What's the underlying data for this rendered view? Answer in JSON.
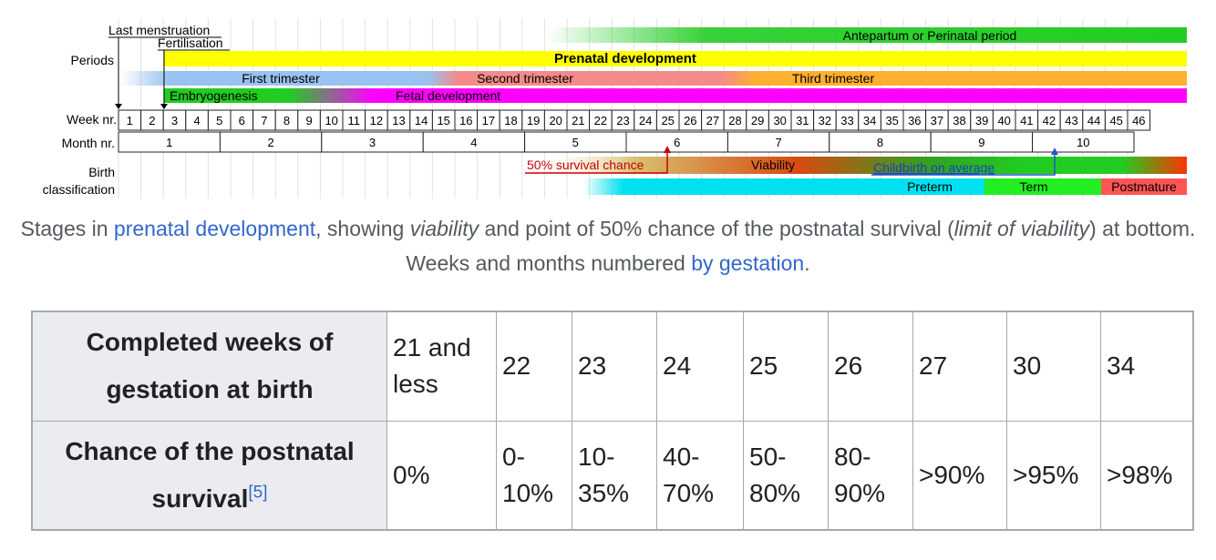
{
  "diagram": {
    "labels": {
      "last_menstruation": "Last menstruation",
      "fertilisation": "Fertilisation",
      "periods": "Periods",
      "week_nr": "Week nr.",
      "month_nr": "Month nr.",
      "birth": "Birth",
      "classification": "classification"
    },
    "bars": {
      "antepartum": "Antepartum or Perinatal period",
      "prenatal": "Prenatal development",
      "first_trimester": "First trimester",
      "second_trimester": "Second trimester",
      "third_trimester": "Third trimester",
      "embryogenesis": "Embryogenesis",
      "fetal": "Fetal development",
      "survival50": "50% survival chance",
      "viability": "Viability",
      "childbirth": "Childbirth on average",
      "preterm": "Preterm",
      "term": "Term",
      "postmature": "Postmature"
    },
    "weeks": [
      "1",
      "2",
      "3",
      "4",
      "5",
      "6",
      "7",
      "8",
      "9",
      "10",
      "11",
      "12",
      "13",
      "14",
      "15",
      "16",
      "17",
      "18",
      "19",
      "20",
      "21",
      "22",
      "23",
      "24",
      "25",
      "26",
      "27",
      "28",
      "29",
      "30",
      "31",
      "32",
      "33",
      "34",
      "35",
      "36",
      "37",
      "38",
      "39",
      "40",
      "41",
      "42",
      "43",
      "44",
      "45",
      "46"
    ],
    "months": [
      "1",
      "2",
      "3",
      "4",
      "5",
      "6",
      "7",
      "8",
      "9",
      "10"
    ],
    "colors": {
      "antepartum": "#22cc22",
      "prenatal": "#ffff00",
      "first_trimester": "#99c2f0",
      "second_trimester": "#f58a8a",
      "third_trimester": "#ffb030",
      "embryogenesis": "#22cc22",
      "fetal": "#ff00ff",
      "preterm": "#00e0f0",
      "term": "#22ee22",
      "postmature": "#ff5555",
      "survival_line": "#cc0000",
      "childbirth_line": "#2255cc"
    }
  },
  "caption": {
    "p1": "Stages in ",
    "link1": "prenatal development",
    "p2": ", showing ",
    "i1": "viability",
    "p3": " and point of 50% chance of the postnatal survival (",
    "i2": "limit of viability",
    "p4": ") at bottom. Weeks and months numbered ",
    "link2": "by gestation",
    "p5": "."
  },
  "table": {
    "row1_header": "Completed weeks of gestation at birth",
    "row1": [
      "21 and less",
      "22",
      "23",
      "24",
      "25",
      "26",
      "27",
      "30",
      "34"
    ],
    "row2_header": "Chance of the postnatal survival",
    "row2_ref": "[5]",
    "row2": [
      "0%",
      "0-10%",
      "10-35%",
      "40-70%",
      "50-80%",
      "80-90%",
      ">90%",
      ">95%",
      ">98%"
    ]
  }
}
